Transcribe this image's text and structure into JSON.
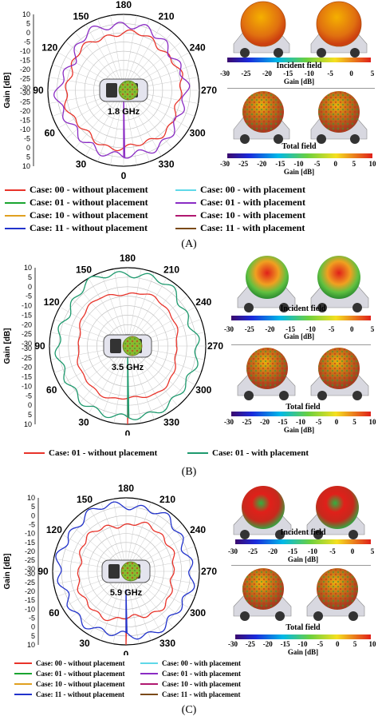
{
  "panels": [
    {
      "caption": "(A)",
      "freq_label": "1.8 GHz",
      "incident_label": "Incident field",
      "total_label": "Total field",
      "gain_unit": "Gain [dB]",
      "colorbar_ticks": [
        "-30",
        "-25",
        "-20",
        "-15",
        "-10",
        "-5",
        "0",
        "5"
      ],
      "colorbar_ticks_total": [
        "-30",
        "-25",
        "-20",
        "-15",
        "-10",
        "-5",
        "0",
        "5",
        "10"
      ]
    },
    {
      "caption": "(B)",
      "freq_label": "3.5 GHz",
      "incident_label": "Incident field",
      "total_label": "Total field",
      "gain_unit": "Gain [dB]",
      "colorbar_ticks": [
        "-30",
        "-25",
        "-20",
        "-15",
        "-10",
        "-5",
        "0",
        "5"
      ],
      "colorbar_ticks_total": [
        "-30",
        "-25",
        "-20",
        "-15",
        "-10",
        "-5",
        "0",
        "5",
        "10"
      ]
    },
    {
      "caption": "(C)",
      "freq_label": "5.9 GHz",
      "incident_label": "Incident field",
      "total_label": "Total field",
      "gain_unit": "Gain [dB]",
      "colorbar_ticks": [
        "-30",
        "-25",
        "-20",
        "-15",
        "-10",
        "-5",
        "0",
        "5"
      ],
      "colorbar_ticks_total": [
        "-30",
        "-25",
        "-20",
        "-15",
        "-10",
        "-5",
        "0",
        "5",
        "10"
      ]
    }
  ],
  "colors": {
    "case00_without": "#e8332a",
    "case00_with": "#5fd8e8",
    "case01_without": "#1aa531",
    "case01_with": "#8a2cc4",
    "case10_without": "#e0a020",
    "case10_with": "#b01870",
    "case11_without": "#2233cc",
    "case11_with": "#7a4a18",
    "caseB_without": "#e8332a",
    "caseB_with": "#1e9a6e"
  },
  "legendA": [
    {
      "label": "Case: 00 - without placement",
      "color": "#e8332a"
    },
    {
      "label": "Case: 00 - with placement",
      "color": "#5fd8e8"
    },
    {
      "label": "Case: 01 - without placement",
      "color": "#1aa531"
    },
    {
      "label": "Case: 01 - with placement",
      "color": "#8a2cc4"
    },
    {
      "label": "Case: 10 - without placement",
      "color": "#e0a020"
    },
    {
      "label": "Case: 10 - with placement",
      "color": "#b01870"
    },
    {
      "label": "Case: 11 - without placement",
      "color": "#2233cc"
    },
    {
      "label": "Case: 11 - with placement",
      "color": "#7a4a18"
    }
  ],
  "legendB": [
    {
      "label": "Case: 01 - without placement",
      "color": "#e8332a"
    },
    {
      "label": "Case: 01 - with placement",
      "color": "#1e9a6e"
    }
  ],
  "chart_data": [
    {
      "type": "polar",
      "subtitle": "1.8 GHz",
      "ylabel": "Gain [dB]",
      "radial_range": [
        -30,
        10
      ],
      "radial_ticks": [
        10,
        5,
        0,
        -5,
        -10,
        -15,
        -20,
        -25,
        -30
      ],
      "angle_ticks": [
        0,
        30,
        60,
        90,
        120,
        150,
        180,
        210,
        240,
        270,
        300,
        330
      ],
      "series": [
        {
          "name": "Case: 00 - without placement",
          "color": "#e8332a",
          "angles": [
            0,
            30,
            60,
            90,
            120,
            150,
            180,
            210,
            240,
            270,
            300,
            330
          ],
          "values": [
            0,
            0,
            0,
            0,
            0,
            0,
            0,
            0,
            0,
            0,
            0,
            0
          ]
        },
        {
          "name": "Case: 01 - with placement",
          "color": "#8a2cc4",
          "angles": [
            0,
            30,
            60,
            90,
            120,
            150,
            180,
            210,
            240,
            270,
            300,
            330
          ],
          "values": [
            6,
            2,
            5,
            3,
            2,
            4,
            6,
            2,
            3,
            1,
            4,
            3
          ]
        }
      ]
    },
    {
      "type": "polar",
      "subtitle": "3.5 GHz",
      "ylabel": "Gain [dB]",
      "radial_range": [
        -30,
        10
      ],
      "radial_ticks": [
        10,
        5,
        0,
        -5,
        -10,
        -15,
        -20,
        -25,
        -30
      ],
      "angle_ticks": [
        0,
        30,
        60,
        90,
        120,
        150,
        180,
        210,
        240,
        270,
        300,
        330
      ],
      "series": [
        {
          "name": "Case: 01 - without placement",
          "color": "#e8332a",
          "angles": [
            0,
            30,
            60,
            90,
            120,
            150,
            180,
            210,
            240,
            270,
            300,
            330
          ],
          "values": [
            -4,
            -2,
            -3,
            -6,
            -3,
            -2,
            -4,
            -2,
            -3,
            -6,
            -3,
            -2
          ]
        },
        {
          "name": "Case: 01 - with placement",
          "color": "#1e9a6e",
          "angles": [
            0,
            30,
            60,
            90,
            120,
            150,
            180,
            210,
            240,
            270,
            300,
            330
          ],
          "values": [
            8,
            5,
            7,
            4,
            6,
            7,
            8,
            6,
            5,
            4,
            7,
            5
          ]
        }
      ]
    },
    {
      "type": "polar",
      "subtitle": "5.9 GHz",
      "ylabel": "Gain [dB]",
      "radial_range": [
        -30,
        10
      ],
      "radial_ticks": [
        10,
        5,
        0,
        -5,
        -10,
        -15,
        -20,
        -25,
        -30
      ],
      "angle_ticks": [
        0,
        30,
        60,
        90,
        120,
        150,
        180,
        210,
        240,
        270,
        300,
        330
      ],
      "series": [
        {
          "name": "Case: 00 - without placement",
          "color": "#e8332a",
          "angles": [
            0,
            30,
            60,
            90,
            120,
            150,
            180,
            210,
            240,
            270,
            300,
            330
          ],
          "values": [
            -5,
            -3,
            -2,
            -6,
            -2,
            -4,
            -5,
            -3,
            -2,
            -6,
            -2,
            -4
          ]
        },
        {
          "name": "Case: 11 - without placement",
          "color": "#2233cc",
          "angles": [
            0,
            30,
            60,
            90,
            120,
            150,
            180,
            210,
            240,
            270,
            300,
            330
          ],
          "values": [
            6,
            4,
            7,
            5,
            8,
            6,
            7,
            5,
            6,
            4,
            7,
            5
          ]
        }
      ]
    }
  ],
  "legendC": [
    {
      "label": "Case: 00 - without placement",
      "color": "#e8332a"
    },
    {
      "label": "Case: 00 - with placement",
      "color": "#5fd8e8"
    },
    {
      "label": "Case: 01 - without placement",
      "color": "#1aa531"
    },
    {
      "label": "Case: 01 - with placement",
      "color": "#8a2cc4"
    },
    {
      "label": "Case: 10 - without placement",
      "color": "#e0a020"
    },
    {
      "label": "Case: 10 - with placement",
      "color": "#b01870"
    },
    {
      "label": "Case: 11 - without placement",
      "color": "#2233cc"
    },
    {
      "label": "Case: 11 - with placement",
      "color": "#7a4a18"
    }
  ]
}
